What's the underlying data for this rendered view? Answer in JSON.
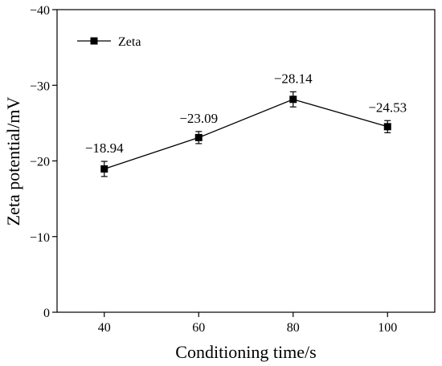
{
  "chart_data": {
    "type": "line",
    "x": [
      40,
      60,
      80,
      100
    ],
    "series": [
      {
        "name": "Zeta",
        "values": [
          -18.94,
          -23.09,
          -28.14,
          -24.53
        ],
        "error": [
          1.0,
          0.8,
          1.0,
          0.8
        ],
        "labels": [
          "−18.94",
          "−23.09",
          "−28.14",
          "−24.53"
        ]
      }
    ],
    "xlabel": "Conditioning time/s",
    "ylabel": "Zeta potential/mV",
    "x_ticks": [
      40,
      60,
      80,
      100
    ],
    "y_ticks": [
      0,
      -10,
      -20,
      -30,
      -40
    ],
    "y_tick_labels": [
      "0",
      "−10",
      "−20",
      "−30",
      "−40"
    ],
    "xlim": [
      30,
      110
    ],
    "ylim": [
      0,
      -40
    ],
    "legend_position": "top-left",
    "grid": false
  }
}
